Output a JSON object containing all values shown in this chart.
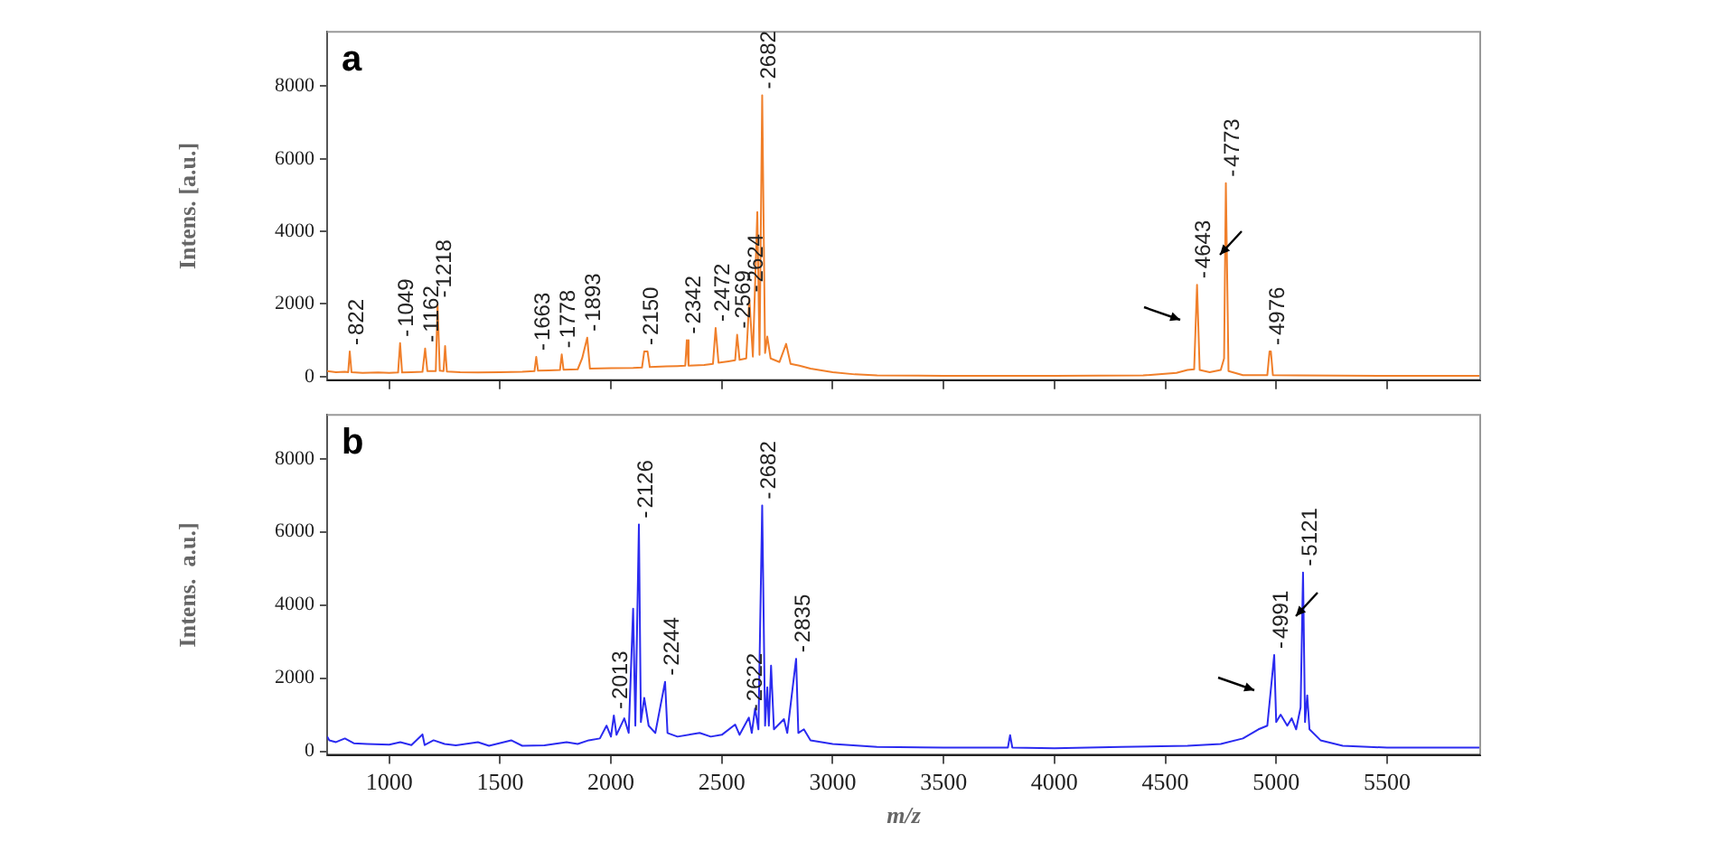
{
  "chart_data": [
    {
      "type": "line",
      "ylabel": "Intens. [a.u.]",
      "xlim": [
        720,
        5920
      ],
      "ylim": [
        -100,
        9500
      ],
      "xticks": [
        1000,
        1500,
        2000,
        2500,
        3000,
        3500,
        4000,
        4500,
        5000,
        5500
      ],
      "yticks": [
        0,
        2000,
        4000,
        6000,
        8000
      ],
      "tick_labels": "y",
      "grid": false,
      "legend": false,
      "marker": "none",
      "line_style": "solid",
      "series": [
        {
          "color": "#f07f2a",
          "x": [
            720,
            760,
            800,
            815,
            822,
            830,
            880,
            950,
            1000,
            1040,
            1049,
            1058,
            1100,
            1150,
            1162,
            1172,
            1210,
            1218,
            1228,
            1245,
            1252,
            1260,
            1320,
            1400,
            1500,
            1600,
            1655,
            1663,
            1671,
            1720,
            1770,
            1778,
            1786,
            1850,
            1870,
            1893,
            1905,
            2000,
            2100,
            2140,
            2150,
            2165,
            2175,
            2250,
            2300,
            2335,
            2342,
            2350,
            2420,
            2460,
            2472,
            2485,
            2530,
            2560,
            2569,
            2580,
            2610,
            2624,
            2640,
            2660,
            2670,
            2682,
            2695,
            2705,
            2720,
            2760,
            2790,
            2810,
            2850,
            2900,
            3000,
            3100,
            3200,
            3500,
            4000,
            4400,
            4550,
            4600,
            4630,
            4643,
            4655,
            4700,
            4750,
            4765,
            4773,
            4785,
            4850,
            4960,
            4970,
            4976,
            4985,
            5100,
            5500,
            5920
          ],
          "values": [
            150,
            120,
            130,
            120,
            690,
            120,
            100,
            110,
            100,
            110,
            920,
            110,
            120,
            130,
            770,
            150,
            150,
            2000,
            160,
            150,
            840,
            140,
            120,
            110,
            120,
            130,
            150,
            540,
            160,
            170,
            180,
            610,
            190,
            200,
            500,
            1070,
            220,
            230,
            240,
            250,
            690,
            690,
            260,
            280,
            290,
            300,
            1000,
            300,
            320,
            350,
            1340,
            380,
            420,
            450,
            1150,
            460,
            500,
            2150,
            550,
            4530,
            600,
            7750,
            650,
            1100,
            500,
            400,
            900,
            350,
            300,
            220,
            120,
            60,
            30,
            20,
            20,
            30,
            100,
            180,
            200,
            2530,
            180,
            120,
            180,
            500,
            5330,
            150,
            40,
            40,
            690,
            690,
            40,
            30,
            20,
            20
          ]
        }
      ],
      "annotations": [
        "a",
        {
          "text": "822",
          "x": 822,
          "y": 690
        },
        {
          "text": "1049",
          "x": 1049,
          "y": 920
        },
        {
          "text": "1162",
          "x": 1162,
          "y": 770
        },
        {
          "text": "1218",
          "x": 1218,
          "y": 2000
        },
        {
          "text": "1663",
          "x": 1663,
          "y": 540
        },
        {
          "text": "1778",
          "x": 1778,
          "y": 610
        },
        {
          "text": "1893",
          "x": 1893,
          "y": 1070
        },
        {
          "text": "2150",
          "x": 2150,
          "y": 690
        },
        {
          "text": "2342",
          "x": 2342,
          "y": 1000
        },
        {
          "text": "2472",
          "x": 2472,
          "y": 1340
        },
        {
          "text": "2569",
          "x": 2569,
          "y": 1150
        },
        {
          "text": "2624",
          "x": 2624,
          "y": 2150
        },
        {
          "text": "2682",
          "x": 2682,
          "y": 7750
        },
        {
          "text": "4643",
          "x": 4643,
          "y": 2530
        },
        {
          "text": "4773",
          "x": 4773,
          "y": 5330
        },
        {
          "text": "4976",
          "x": 4976,
          "y": 690
        }
      ]
    },
    {
      "type": "line",
      "ylabel": "Intens.  a.u.]",
      "xlabel": "m/z",
      "xlim": [
        720,
        5920
      ],
      "ylim": [
        -100,
        9200
      ],
      "xticks": [
        1000,
        1500,
        2000,
        2500,
        3000,
        3500,
        4000,
        4500,
        5000,
        5500
      ],
      "yticks": [
        0,
        2000,
        4000,
        6000,
        8000
      ],
      "grid": false,
      "legend": false,
      "marker": "none",
      "line_style": "solid",
      "series": [
        {
          "color": "#2b2bf0",
          "x": [
            720,
            730,
            760,
            800,
            840,
            900,
            1000,
            1050,
            1100,
            1150,
            1160,
            1200,
            1250,
            1300,
            1400,
            1450,
            1550,
            1600,
            1700,
            1800,
            1850,
            1900,
            1950,
            1980,
            2000,
            2013,
            2025,
            2060,
            2080,
            2100,
            2110,
            2126,
            2135,
            2150,
            2170,
            2200,
            2244,
            2255,
            2300,
            2400,
            2450,
            2500,
            2560,
            2580,
            2622,
            2635,
            2650,
            2665,
            2682,
            2695,
            2705,
            2712,
            2722,
            2735,
            2780,
            2795,
            2835,
            2845,
            2870,
            2900,
            3000,
            3200,
            3500,
            3790,
            3800,
            3810,
            4000,
            4300,
            4600,
            4750,
            4850,
            4920,
            4960,
            4991,
            5000,
            5020,
            5050,
            5070,
            5090,
            5110,
            5121,
            5130,
            5140,
            5150,
            5200,
            5300,
            5500,
            5920
          ],
          "values": [
            400,
            300,
            250,
            350,
            220,
            200,
            180,
            250,
            170,
            460,
            170,
            300,
            200,
            160,
            250,
            150,
            300,
            150,
            160,
            250,
            200,
            300,
            350,
            700,
            400,
            980,
            450,
            900,
            500,
            3900,
            700,
            6200,
            800,
            1460,
            700,
            500,
            1900,
            500,
            400,
            500,
            400,
            450,
            730,
            450,
            920,
            500,
            1170,
            600,
            6720,
            700,
            1750,
            700,
            2340,
            600,
            880,
            500,
            2530,
            500,
            600,
            300,
            200,
            120,
            100,
            100,
            440,
            100,
            80,
            120,
            150,
            200,
            350,
            600,
            700,
            2630,
            800,
            1000,
            700,
            900,
            600,
            1200,
            4890,
            800,
            1530,
            600,
            300,
            150,
            100,
            100
          ]
        }
      ],
      "annotations": [
        "b",
        {
          "text": "2013",
          "x": 2013,
          "y": 980
        },
        {
          "text": "2126",
          "x": 2126,
          "y": 6200
        },
        {
          "text": "2244",
          "x": 2244,
          "y": 1900
        },
        {
          "text": "2622",
          "x": 2622,
          "y": 920
        },
        {
          "text": "2682",
          "x": 2682,
          "y": 6720
        },
        {
          "text": "2835",
          "x": 2835,
          "y": 2530
        },
        {
          "text": "4991",
          "x": 4991,
          "y": 2630
        },
        {
          "text": "5121",
          "x": 5121,
          "y": 4890
        }
      ]
    }
  ]
}
